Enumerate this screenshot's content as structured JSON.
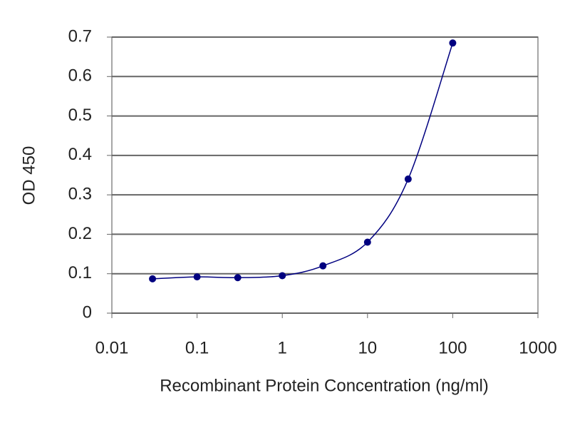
{
  "chart_data": {
    "type": "line",
    "x_label": "Recombinant Protein Concentration (ng/ml)",
    "y_label": "OD 450",
    "x": [
      0.03,
      0.1,
      0.3,
      1,
      3,
      10,
      30,
      100
    ],
    "values": [
      0.087,
      0.092,
      0.09,
      0.095,
      0.12,
      0.18,
      0.34,
      0.685
    ],
    "color": "#000080",
    "xscale": "log",
    "grid": true,
    "xlim": [
      0.01,
      1000
    ],
    "xticks": [
      0.01,
      0.1,
      1,
      10,
      100,
      1000
    ],
    "ylim": [
      0,
      0.7
    ],
    "yticks": [
      0,
      0.1,
      0.2,
      0.3,
      0.4,
      0.5,
      0.6,
      0.7
    ]
  }
}
